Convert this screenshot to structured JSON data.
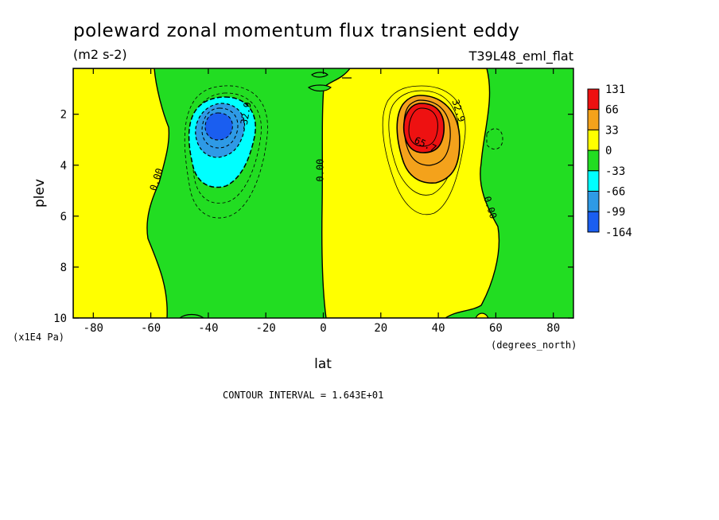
{
  "chart_data": {
    "type": "heatmap",
    "title": "poleward zonal momentum flux transient eddy",
    "units": "(m2 s-2)",
    "dataset": "T39L48_eml_flat",
    "xlabel": "lat",
    "xunits": "(degrees_north)",
    "ylabel": "plev",
    "yunits": "(x1E4 Pa)",
    "xlim": [
      -87,
      87
    ],
    "ylim": [
      0.2,
      10
    ],
    "y_inverted": true,
    "x_ticks": [
      -80,
      -60,
      -40,
      -20,
      0,
      20,
      40,
      60,
      80
    ],
    "y_ticks": [
      2,
      4,
      6,
      8,
      10
    ],
    "footer": "CONTOUR INTERVAL = 1.643E+01",
    "colorbar": {
      "labels": [
        "131",
        "66",
        "33",
        "0",
        "-33",
        "-66",
        "-99",
        "-164"
      ],
      "colors": [
        "#ee1111",
        "#f4a21b",
        "#ffff00",
        "#22dd22",
        "#00ffff",
        "#2e9ae6",
        "#1a5ef0"
      ]
    },
    "contour_labels": [
      {
        "text": "0.00",
        "lat": -57,
        "plev": 4.6,
        "angle": -72
      },
      {
        "text": "-32.9",
        "lat": -26,
        "plev": 2.1,
        "angle": -80
      },
      {
        "text": "0.00",
        "lat": 0,
        "plev": 4.2,
        "angle": -90
      },
      {
        "text": "32.9",
        "lat": 46,
        "plev": 1.9,
        "angle": 72
      },
      {
        "text": "65.7",
        "lat": 35,
        "plev": 3.3,
        "angle": 25
      },
      {
        "text": "0.00",
        "lat": 57,
        "plev": 5.7,
        "angle": 72
      }
    ],
    "features": [
      {
        "name": "southern-negative-center",
        "lat": -37,
        "plev": 2.4,
        "value": -164
      },
      {
        "name": "northern-positive-center",
        "lat": 35,
        "plev": 2.4,
        "value": 131
      }
    ]
  }
}
